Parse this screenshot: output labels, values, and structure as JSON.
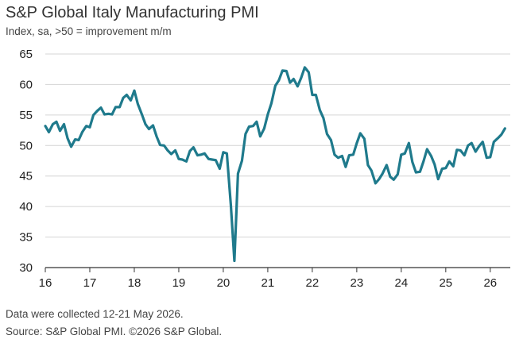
{
  "chart_data": {
    "type": "line",
    "title": "S&P Global Italy Manufacturing PMI",
    "subtitle": "Index, sa, >50 = improvement m/m",
    "xlabel": "",
    "ylabel": "",
    "xlim": [
      2016.0,
      2026.45
    ],
    "ylim": [
      30,
      65
    ],
    "yticks": [
      30,
      35,
      40,
      45,
      50,
      55,
      60,
      65
    ],
    "xticks": [
      {
        "value": 2016,
        "label": "16"
      },
      {
        "value": 2017,
        "label": "17"
      },
      {
        "value": 2018,
        "label": "18"
      },
      {
        "value": 2019,
        "label": "19"
      },
      {
        "value": 2020,
        "label": "20"
      },
      {
        "value": 2021,
        "label": "21"
      },
      {
        "value": 2022,
        "label": "22"
      },
      {
        "value": 2023,
        "label": "23"
      },
      {
        "value": 2024,
        "label": "24"
      },
      {
        "value": 2025,
        "label": "25"
      },
      {
        "value": 2026,
        "label": "26"
      }
    ],
    "grid": "horizontal",
    "legend": "none",
    "line_color": "#1f7a8c",
    "series": [
      {
        "name": "",
        "points": [
          [
            2016.0,
            53.2
          ],
          [
            2016.08,
            52.2
          ],
          [
            2016.17,
            53.5
          ],
          [
            2016.25,
            53.9
          ],
          [
            2016.33,
            52.4
          ],
          [
            2016.42,
            53.5
          ],
          [
            2016.5,
            51.2
          ],
          [
            2016.58,
            49.8
          ],
          [
            2016.67,
            51.0
          ],
          [
            2016.75,
            50.9
          ],
          [
            2016.83,
            52.2
          ],
          [
            2016.92,
            53.2
          ],
          [
            2017.0,
            53.0
          ],
          [
            2017.08,
            55.0
          ],
          [
            2017.17,
            55.7
          ],
          [
            2017.25,
            56.2
          ],
          [
            2017.33,
            55.1
          ],
          [
            2017.42,
            55.2
          ],
          [
            2017.5,
            55.1
          ],
          [
            2017.58,
            56.3
          ],
          [
            2017.67,
            56.3
          ],
          [
            2017.75,
            57.8
          ],
          [
            2017.83,
            58.3
          ],
          [
            2017.92,
            57.4
          ],
          [
            2018.0,
            59.0
          ],
          [
            2018.08,
            56.8
          ],
          [
            2018.17,
            55.1
          ],
          [
            2018.25,
            53.5
          ],
          [
            2018.33,
            52.7
          ],
          [
            2018.42,
            53.3
          ],
          [
            2018.5,
            51.5
          ],
          [
            2018.58,
            50.1
          ],
          [
            2018.67,
            50.0
          ],
          [
            2018.75,
            49.2
          ],
          [
            2018.83,
            48.6
          ],
          [
            2018.92,
            49.2
          ],
          [
            2019.0,
            47.8
          ],
          [
            2019.08,
            47.7
          ],
          [
            2019.17,
            47.4
          ],
          [
            2019.25,
            49.1
          ],
          [
            2019.33,
            49.7
          ],
          [
            2019.42,
            48.4
          ],
          [
            2019.5,
            48.5
          ],
          [
            2019.58,
            48.7
          ],
          [
            2019.67,
            47.8
          ],
          [
            2019.75,
            47.7
          ],
          [
            2019.83,
            47.6
          ],
          [
            2019.92,
            46.2
          ],
          [
            2020.0,
            48.9
          ],
          [
            2020.08,
            48.7
          ],
          [
            2020.17,
            40.3
          ],
          [
            2020.25,
            31.1
          ],
          [
            2020.33,
            45.4
          ],
          [
            2020.42,
            47.5
          ],
          [
            2020.5,
            51.9
          ],
          [
            2020.58,
            53.1
          ],
          [
            2020.67,
            53.2
          ],
          [
            2020.75,
            53.9
          ],
          [
            2020.83,
            51.5
          ],
          [
            2020.92,
            52.8
          ],
          [
            2021.0,
            55.1
          ],
          [
            2021.08,
            56.9
          ],
          [
            2021.17,
            59.8
          ],
          [
            2021.25,
            60.7
          ],
          [
            2021.33,
            62.3
          ],
          [
            2021.42,
            62.2
          ],
          [
            2021.5,
            60.3
          ],
          [
            2021.58,
            60.9
          ],
          [
            2021.67,
            59.7
          ],
          [
            2021.75,
            61.1
          ],
          [
            2021.83,
            62.8
          ],
          [
            2021.92,
            62.0
          ],
          [
            2022.0,
            58.3
          ],
          [
            2022.08,
            58.3
          ],
          [
            2022.17,
            55.8
          ],
          [
            2022.25,
            54.5
          ],
          [
            2022.33,
            51.9
          ],
          [
            2022.42,
            50.9
          ],
          [
            2022.5,
            48.5
          ],
          [
            2022.58,
            48.0
          ],
          [
            2022.67,
            48.3
          ],
          [
            2022.75,
            46.5
          ],
          [
            2022.83,
            48.4
          ],
          [
            2022.92,
            48.5
          ],
          [
            2023.0,
            50.4
          ],
          [
            2023.08,
            52.0
          ],
          [
            2023.17,
            51.1
          ],
          [
            2023.25,
            46.8
          ],
          [
            2023.33,
            45.9
          ],
          [
            2023.42,
            43.8
          ],
          [
            2023.5,
            44.5
          ],
          [
            2023.58,
            45.4
          ],
          [
            2023.67,
            46.8
          ],
          [
            2023.75,
            44.9
          ],
          [
            2023.83,
            44.4
          ],
          [
            2023.92,
            45.3
          ],
          [
            2024.0,
            48.5
          ],
          [
            2024.08,
            48.7
          ],
          [
            2024.17,
            50.4
          ],
          [
            2024.25,
            47.3
          ],
          [
            2024.33,
            45.6
          ],
          [
            2024.42,
            45.7
          ],
          [
            2024.5,
            47.4
          ],
          [
            2024.58,
            49.4
          ],
          [
            2024.67,
            48.3
          ],
          [
            2024.75,
            46.9
          ],
          [
            2024.83,
            44.5
          ],
          [
            2024.92,
            46.2
          ],
          [
            2025.0,
            46.3
          ],
          [
            2025.08,
            47.4
          ],
          [
            2025.17,
            46.6
          ],
          [
            2025.25,
            49.3
          ],
          [
            2025.33,
            49.2
          ],
          [
            2025.42,
            48.4
          ],
          [
            2025.5,
            50.0
          ],
          [
            2025.58,
            50.4
          ],
          [
            2025.67,
            49.0
          ],
          [
            2025.75,
            49.9
          ],
          [
            2025.83,
            50.6
          ],
          [
            2025.92,
            48.0
          ],
          [
            2026.0,
            48.1
          ],
          [
            2026.08,
            50.6
          ],
          [
            2026.17,
            51.2
          ],
          [
            2026.25,
            51.8
          ],
          [
            2026.33,
            52.8
          ]
        ]
      }
    ]
  },
  "footnotes": {
    "line1": "Data were collected 12-21 May 2026.",
    "line2": "Source: S&P Global PMI. ©2026 S&P Global."
  }
}
